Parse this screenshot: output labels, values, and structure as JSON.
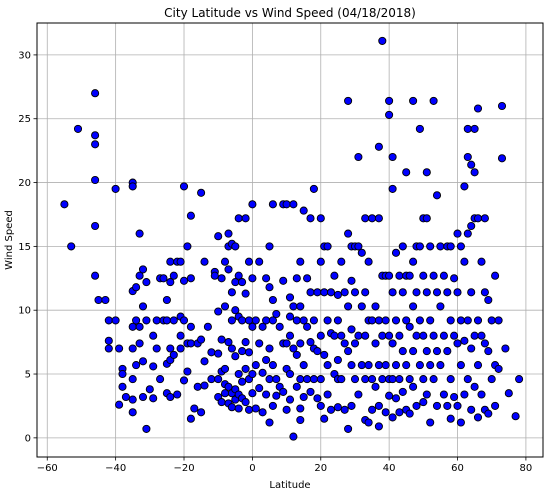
{
  "chart_data": {
    "type": "scatter",
    "title": "City Latitude vs Wind Speed (04/18/2018)",
    "xlabel": "Latitude",
    "ylabel": "Wind Speed",
    "xlim": [
      -63,
      85
    ],
    "ylim": [
      -1.5,
      32.5
    ],
    "xticks": [
      -60,
      -40,
      -20,
      0,
      20,
      40,
      60,
      80
    ],
    "yticks": [
      0,
      5,
      10,
      15,
      20,
      25,
      30
    ],
    "grid": true,
    "marker_color": "#0000ff",
    "marker_edge": "#000000",
    "points": [
      [
        -55,
        18.3
      ],
      [
        -53,
        15
      ],
      [
        -51,
        24.2
      ],
      [
        -46,
        27
      ],
      [
        -46,
        23.7
      ],
      [
        -46,
        23
      ],
      [
        -46,
        20.2
      ],
      [
        -46,
        16.6
      ],
      [
        -46,
        12.7
      ],
      [
        -45,
        10.8
      ],
      [
        -43,
        10.8
      ],
      [
        -42,
        9.2
      ],
      [
        -42,
        7.6
      ],
      [
        -42,
        7
      ],
      [
        -40,
        19.5
      ],
      [
        -40,
        9.2
      ],
      [
        -39,
        7
      ],
      [
        -39,
        2.6
      ],
      [
        -38,
        5.4
      ],
      [
        -38,
        5
      ],
      [
        -38,
        4
      ],
      [
        -37,
        3.2
      ],
      [
        -35,
        20
      ],
      [
        -35,
        19.7
      ],
      [
        -35,
        11.5
      ],
      [
        -35,
        8.7
      ],
      [
        -35,
        7
      ],
      [
        -35,
        4.6
      ],
      [
        -35,
        3
      ],
      [
        -35,
        2
      ],
      [
        -34,
        11.8
      ],
      [
        -34,
        9.2
      ],
      [
        -34,
        5.7
      ],
      [
        -33,
        16
      ],
      [
        -33,
        12.7
      ],
      [
        -33,
        8.7
      ],
      [
        -33,
        7.4
      ],
      [
        -32,
        13.2
      ],
      [
        -32,
        10.3
      ],
      [
        -32,
        6
      ],
      [
        -32,
        3.2
      ],
      [
        -31,
        12.2
      ],
      [
        -31,
        9.2
      ],
      [
        -31,
        0.7
      ],
      [
        -30,
        3.8
      ],
      [
        -29,
        8
      ],
      [
        -29,
        5.6
      ],
      [
        -29,
        3.1
      ],
      [
        -28,
        9.2
      ],
      [
        -28,
        7
      ],
      [
        -27,
        12.5
      ],
      [
        -27,
        4.6
      ],
      [
        -26,
        12.5
      ],
      [
        -26,
        9.2
      ],
      [
        -25,
        10.8
      ],
      [
        -25,
        9.2
      ],
      [
        -25,
        5.8
      ],
      [
        -25,
        3.5
      ],
      [
        -24,
        13.8
      ],
      [
        -24,
        12.2
      ],
      [
        -24,
        7
      ],
      [
        -24,
        6.1
      ],
      [
        -24,
        3.2
      ],
      [
        -23,
        12.7
      ],
      [
        -23,
        9.2
      ],
      [
        -23,
        6.5
      ],
      [
        -22,
        13.8
      ],
      [
        -22,
        3.4
      ],
      [
        -21,
        13.8
      ],
      [
        -21,
        9.5
      ],
      [
        -21,
        8
      ],
      [
        -21,
        7
      ],
      [
        -20,
        19.7
      ],
      [
        -20,
        12.3
      ],
      [
        -20,
        9.2
      ],
      [
        -20,
        4.5
      ],
      [
        -19,
        15
      ],
      [
        -19,
        7.4
      ],
      [
        -19,
        5.2
      ],
      [
        -18,
        17.4
      ],
      [
        -18,
        12.5
      ],
      [
        -18,
        8.7
      ],
      [
        -18,
        7.4
      ],
      [
        -18,
        1.5
      ],
      [
        -17,
        2.3
      ],
      [
        -16,
        7.4
      ],
      [
        -16,
        4
      ],
      [
        -15,
        19.2
      ],
      [
        -15,
        7.7
      ],
      [
        -15,
        2
      ],
      [
        -14,
        13.8
      ],
      [
        -14,
        6
      ],
      [
        -14,
        4.1
      ],
      [
        -13,
        8.7
      ],
      [
        -12,
        6.7
      ],
      [
        -12,
        4.6
      ],
      [
        -11,
        13
      ],
      [
        -11,
        12.7
      ],
      [
        -10,
        15.8
      ],
      [
        -10,
        9.9
      ],
      [
        -10,
        6.6
      ],
      [
        -10,
        4.6
      ],
      [
        -10,
        3.2
      ],
      [
        -9,
        12.5
      ],
      [
        -9,
        7.7
      ],
      [
        -9,
        5.2
      ],
      [
        -9,
        2.8
      ],
      [
        -8,
        13.8
      ],
      [
        -8,
        10.3
      ],
      [
        -8,
        5.4
      ],
      [
        -8,
        4.2
      ],
      [
        -8,
        3.5
      ],
      [
        -7,
        16
      ],
      [
        -7,
        15
      ],
      [
        -7,
        13.2
      ],
      [
        -7,
        7.5
      ],
      [
        -7,
        4
      ],
      [
        -7,
        2.7
      ],
      [
        -6,
        15.2
      ],
      [
        -6,
        11.4
      ],
      [
        -6,
        9.2
      ],
      [
        -6,
        7
      ],
      [
        -6,
        3.5
      ],
      [
        -6,
        2.4
      ],
      [
        -5,
        15
      ],
      [
        -5,
        12.2
      ],
      [
        -5,
        10
      ],
      [
        -5,
        6.4
      ],
      [
        -5,
        3.8
      ],
      [
        -5,
        3
      ],
      [
        -4,
        17.2
      ],
      [
        -4,
        12.7
      ],
      [
        -4,
        9.5
      ],
      [
        -4,
        5
      ],
      [
        -4,
        3.4
      ],
      [
        -4,
        2.3
      ],
      [
        -3,
        12.2
      ],
      [
        -3,
        9.2
      ],
      [
        -3,
        6.8
      ],
      [
        -3,
        4.4
      ],
      [
        -3,
        3.1
      ],
      [
        -2,
        17.2
      ],
      [
        -2,
        11.3
      ],
      [
        -2,
        7.5
      ],
      [
        -2,
        5.4
      ],
      [
        -2,
        2.8
      ],
      [
        -1,
        13.8
      ],
      [
        -1,
        9.2
      ],
      [
        -1,
        6.7
      ],
      [
        -1,
        4.6
      ],
      [
        -1,
        2.2
      ],
      [
        0,
        18.3
      ],
      [
        0,
        12.5
      ],
      [
        0,
        8.7
      ],
      [
        0,
        5
      ],
      [
        0,
        3.5
      ],
      [
        1,
        9.2
      ],
      [
        1,
        5.7
      ],
      [
        1,
        2.3
      ],
      [
        2,
        13.8
      ],
      [
        2,
        7.4
      ],
      [
        2,
        3.9
      ],
      [
        3,
        8.7
      ],
      [
        3,
        5.1
      ],
      [
        3,
        2
      ],
      [
        4,
        12.5
      ],
      [
        4,
        9.2
      ],
      [
        4,
        6.1
      ],
      [
        4,
        3.4
      ],
      [
        5,
        15
      ],
      [
        5,
        11.8
      ],
      [
        5,
        7
      ],
      [
        5,
        4.6
      ],
      [
        5,
        1.2
      ],
      [
        6,
        18.3
      ],
      [
        6,
        10.8
      ],
      [
        6,
        9.2
      ],
      [
        6,
        5.7
      ],
      [
        6,
        2.5
      ],
      [
        7,
        9.7
      ],
      [
        7,
        4.6
      ],
      [
        7,
        3.3
      ],
      [
        8,
        8.7
      ],
      [
        8,
        4
      ],
      [
        9,
        18.3
      ],
      [
        9,
        12.3
      ],
      [
        9,
        7.4
      ],
      [
        9,
        3.6
      ],
      [
        10,
        18.3
      ],
      [
        10,
        7.4
      ],
      [
        10,
        5.4
      ],
      [
        10,
        2.2
      ],
      [
        11,
        11
      ],
      [
        11,
        9.5
      ],
      [
        11,
        8
      ],
      [
        11,
        5
      ],
      [
        11,
        3
      ],
      [
        12,
        18.3
      ],
      [
        12,
        10.3
      ],
      [
        12,
        7
      ],
      [
        12,
        0.1
      ],
      [
        13,
        12.5
      ],
      [
        13,
        9.2
      ],
      [
        13,
        6.5
      ],
      [
        13,
        4
      ],
      [
        14,
        13.8
      ],
      [
        14,
        10.3
      ],
      [
        14,
        7.4
      ],
      [
        14,
        4.6
      ],
      [
        14,
        2.3
      ],
      [
        15,
        17.8
      ],
      [
        15,
        9.2
      ],
      [
        15,
        5.7
      ],
      [
        15,
        3.2
      ],
      [
        16,
        12.5
      ],
      [
        16,
        8.7
      ],
      [
        16,
        4.6
      ],
      [
        17,
        17.2
      ],
      [
        17,
        11.4
      ],
      [
        17,
        7.5
      ],
      [
        17,
        3.6
      ],
      [
        18,
        19.5
      ],
      [
        18,
        9.2
      ],
      [
        18,
        7
      ],
      [
        18,
        4.6
      ],
      [
        19,
        11.4
      ],
      [
        19,
        6.8
      ],
      [
        19,
        3.1
      ],
      [
        20,
        17.2
      ],
      [
        20,
        13.8
      ],
      [
        20,
        8
      ],
      [
        20,
        4.6
      ],
      [
        20,
        2.5
      ],
      [
        21,
        15
      ],
      [
        21,
        11.4
      ],
      [
        21,
        6.5
      ],
      [
        21,
        1.5
      ],
      [
        22,
        15
      ],
      [
        22,
        9.2
      ],
      [
        22,
        5.7
      ],
      [
        22,
        3.4
      ],
      [
        23,
        11.4
      ],
      [
        23,
        8.2
      ],
      [
        23,
        2.2
      ],
      [
        24,
        12.7
      ],
      [
        24,
        8
      ],
      [
        24,
        5
      ],
      [
        25,
        11.2
      ],
      [
        25,
        9.2
      ],
      [
        25,
        6.1
      ],
      [
        25,
        4.6
      ],
      [
        25,
        2.4
      ],
      [
        26,
        13.8
      ],
      [
        26,
        8
      ],
      [
        26,
        4.6
      ],
      [
        27,
        11.4
      ],
      [
        27,
        7.4
      ],
      [
        27,
        2.2
      ],
      [
        28,
        26.4
      ],
      [
        28,
        16
      ],
      [
        28,
        10.3
      ],
      [
        28,
        6.8
      ],
      [
        28,
        0.7
      ],
      [
        29,
        15
      ],
      [
        29,
        12.3
      ],
      [
        29,
        8.5
      ],
      [
        29,
        5.7
      ],
      [
        29,
        2.5
      ],
      [
        30,
        15
      ],
      [
        30,
        11.4
      ],
      [
        30,
        7.4
      ],
      [
        30,
        4.6
      ],
      [
        31,
        22
      ],
      [
        31,
        15
      ],
      [
        31,
        8
      ],
      [
        31,
        3.4
      ],
      [
        32,
        14.5
      ],
      [
        32,
        10.3
      ],
      [
        32,
        5.7
      ],
      [
        33,
        17.2
      ],
      [
        33,
        11.4
      ],
      [
        33,
        8
      ],
      [
        33,
        4.6
      ],
      [
        33,
        1.4
      ],
      [
        34,
        13.8
      ],
      [
        34,
        9.2
      ],
      [
        34,
        5.7
      ],
      [
        34,
        1.2
      ],
      [
        35,
        17.2
      ],
      [
        35,
        9.2
      ],
      [
        35,
        4.6
      ],
      [
        35,
        2.2
      ],
      [
        36,
        10.3
      ],
      [
        36,
        7.4
      ],
      [
        36,
        4
      ],
      [
        37,
        22.8
      ],
      [
        37,
        17.2
      ],
      [
        37,
        9.2
      ],
      [
        37,
        5.7
      ],
      [
        37,
        2.5
      ],
      [
        37,
        0.9
      ],
      [
        38,
        31.1
      ],
      [
        38,
        12.7
      ],
      [
        38,
        8
      ],
      [
        38,
        4.6
      ],
      [
        39,
        12.7
      ],
      [
        39,
        9.2
      ],
      [
        39,
        5.7
      ],
      [
        39,
        2
      ],
      [
        40,
        26.4
      ],
      [
        40,
        25.3
      ],
      [
        40,
        12.7
      ],
      [
        40,
        8
      ],
      [
        40,
        4.6
      ],
      [
        40,
        3.3
      ],
      [
        41,
        22
      ],
      [
        41,
        19.5
      ],
      [
        41,
        11.4
      ],
      [
        41,
        7.4
      ],
      [
        41,
        4.6
      ],
      [
        41,
        1.6
      ],
      [
        42,
        14.5
      ],
      [
        42,
        9.2
      ],
      [
        42,
        5.7
      ],
      [
        42,
        3.1
      ],
      [
        43,
        12.7
      ],
      [
        43,
        8
      ],
      [
        43,
        4.6
      ],
      [
        43,
        2
      ],
      [
        44,
        15
      ],
      [
        44,
        11.4
      ],
      [
        44,
        6.8
      ],
      [
        44,
        3.6
      ],
      [
        45,
        20.8
      ],
      [
        45,
        12.7
      ],
      [
        45,
        9.2
      ],
      [
        45,
        5.7
      ],
      [
        45,
        2.2
      ],
      [
        46,
        12.7
      ],
      [
        46,
        8.7
      ],
      [
        46,
        4.6
      ],
      [
        46,
        1.9
      ],
      [
        47,
        26.4
      ],
      [
        47,
        13.8
      ],
      [
        47,
        10.3
      ],
      [
        47,
        6.8
      ],
      [
        47,
        4
      ],
      [
        48,
        15
      ],
      [
        48,
        11.4
      ],
      [
        48,
        8
      ],
      [
        48,
        2.5
      ],
      [
        49,
        24.2
      ],
      [
        49,
        15
      ],
      [
        49,
        9.2
      ],
      [
        49,
        5.7
      ],
      [
        50,
        17.2
      ],
      [
        50,
        12.7
      ],
      [
        50,
        8
      ],
      [
        50,
        4.6
      ],
      [
        50,
        2.8
      ],
      [
        51,
        20.8
      ],
      [
        51,
        17.2
      ],
      [
        51,
        11.4
      ],
      [
        51,
        6.8
      ],
      [
        51,
        3.4
      ],
      [
        52,
        15
      ],
      [
        52,
        9.2
      ],
      [
        52,
        5.7
      ],
      [
        52,
        1.2
      ],
      [
        53,
        26.4
      ],
      [
        53,
        12.7
      ],
      [
        53,
        8
      ],
      [
        53,
        4.6
      ],
      [
        54,
        19
      ],
      [
        54,
        11.4
      ],
      [
        54,
        6.8
      ],
      [
        54,
        2.5
      ],
      [
        55,
        15
      ],
      [
        55,
        10.3
      ],
      [
        55,
        5.7
      ],
      [
        56,
        12.7
      ],
      [
        56,
        8
      ],
      [
        56,
        3.4
      ],
      [
        57,
        15
      ],
      [
        57,
        11.4
      ],
      [
        57,
        6.8
      ],
      [
        57,
        2.5
      ],
      [
        58,
        15
      ],
      [
        58,
        9.2
      ],
      [
        58,
        4.6
      ],
      [
        58,
        1.5
      ],
      [
        59,
        12.5
      ],
      [
        59,
        8
      ],
      [
        59,
        3.2
      ],
      [
        60,
        16
      ],
      [
        60,
        11.4
      ],
      [
        60,
        7.4
      ],
      [
        60,
        2.5
      ],
      [
        61,
        15
      ],
      [
        61,
        9.2
      ],
      [
        61,
        5.7
      ],
      [
        61,
        1.2
      ],
      [
        62,
        19.7
      ],
      [
        62,
        13.8
      ],
      [
        62,
        7.6
      ],
      [
        62,
        3.4
      ],
      [
        63,
        24.2
      ],
      [
        63,
        22
      ],
      [
        63,
        16
      ],
      [
        63,
        9.2
      ],
      [
        63,
        4.6
      ],
      [
        64,
        21.4
      ],
      [
        64,
        16.6
      ],
      [
        64,
        11.4
      ],
      [
        64,
        7
      ],
      [
        64,
        2.2
      ],
      [
        65,
        24.2
      ],
      [
        65,
        20.8
      ],
      [
        65,
        17.2
      ],
      [
        65,
        8
      ],
      [
        65,
        4
      ],
      [
        66,
        25.8
      ],
      [
        66,
        17.2
      ],
      [
        66,
        9.2
      ],
      [
        66,
        5.7
      ],
      [
        66,
        1.6
      ],
      [
        67,
        13.8
      ],
      [
        67,
        8
      ],
      [
        67,
        3.4
      ],
      [
        68,
        17.2
      ],
      [
        68,
        11.4
      ],
      [
        68,
        7.4
      ],
      [
        68,
        2.2
      ],
      [
        69,
        10.8
      ],
      [
        69,
        6.8
      ],
      [
        69,
        1.9
      ],
      [
        70,
        9.2
      ],
      [
        70,
        4.6
      ],
      [
        71,
        12.7
      ],
      [
        71,
        5.7
      ],
      [
        71,
        2.5
      ],
      [
        72,
        9.2
      ],
      [
        72,
        5.4
      ],
      [
        73,
        26
      ],
      [
        73,
        21.9
      ],
      [
        74,
        7
      ],
      [
        75,
        3.5
      ],
      [
        77,
        1.7
      ],
      [
        78,
        4.6
      ],
      [
        14,
        1.4
      ]
    ]
  }
}
